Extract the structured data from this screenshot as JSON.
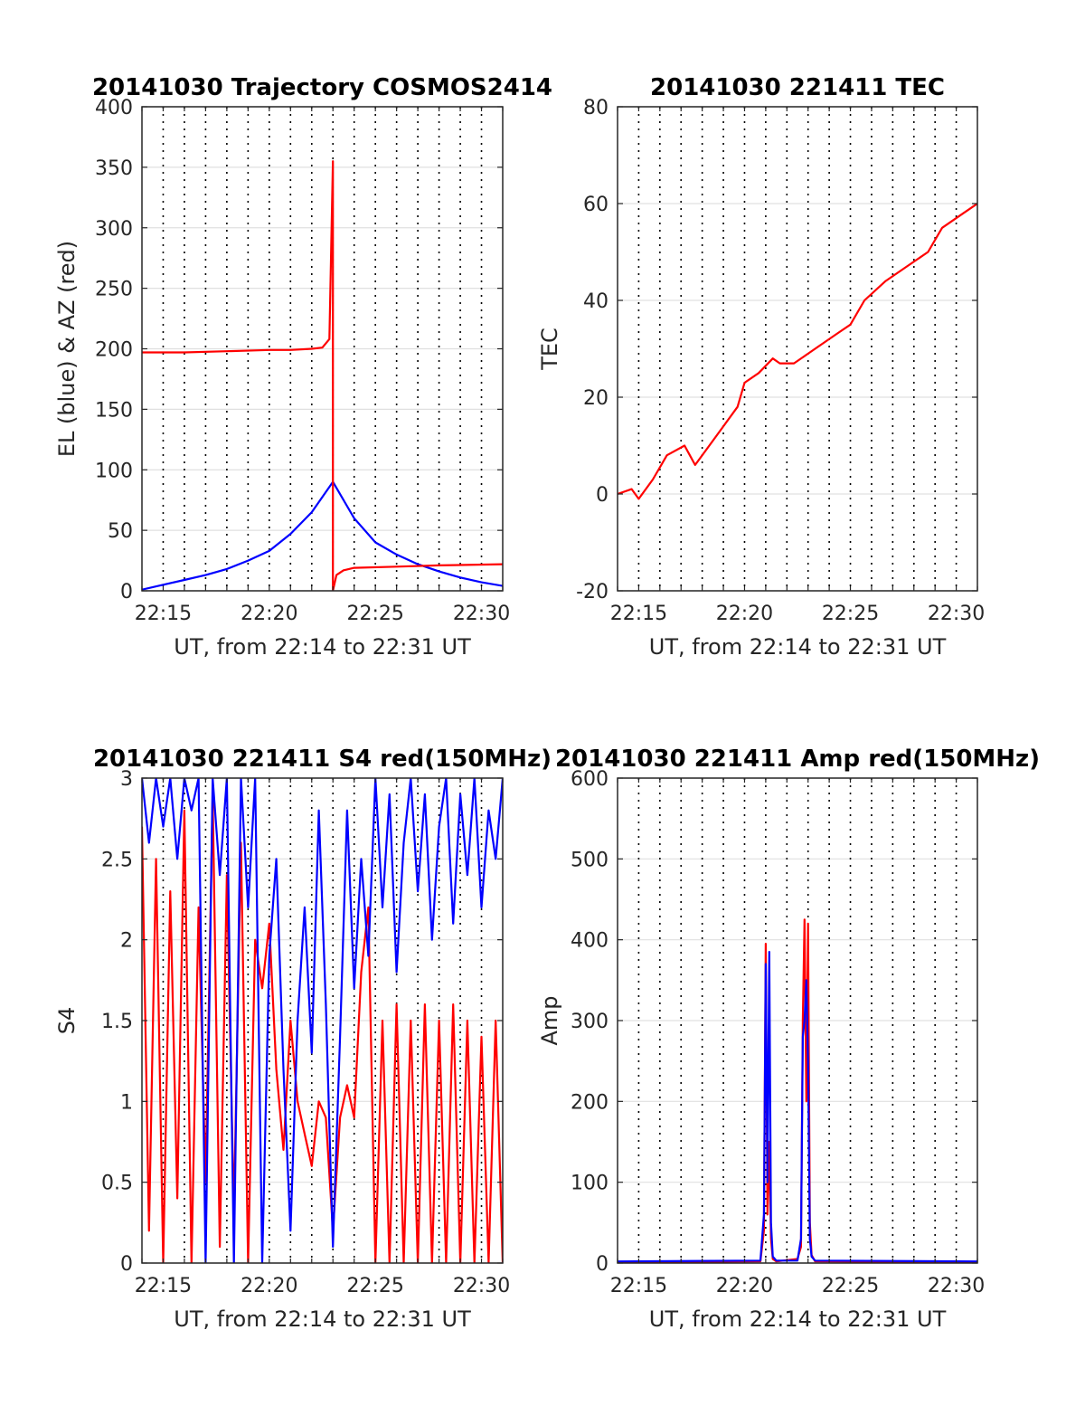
{
  "chart_data": [
    {
      "type": "line",
      "title": "20141030 Trajectory COSMOS2414",
      "xlabel": "UT, from 22:14 to 22:31 UT",
      "ylabel": "EL (blue) & AZ (red)",
      "xlim": [
        "22:14",
        "22:31"
      ],
      "ylim": [
        0,
        400
      ],
      "x_ticks": [
        "22:15",
        "22:20",
        "22:25",
        "22:30"
      ],
      "y_ticks": [
        "0",
        "50",
        "100",
        "150",
        "200",
        "250",
        "300",
        "350",
        "400"
      ],
      "grid": true,
      "series": [
        {
          "color": "#0000ff",
          "x": [
            "22:14:00",
            "22:15:00",
            "22:16:00",
            "22:17:00",
            "22:18:00",
            "22:19:00",
            "22:20:00",
            "22:21:00",
            "22:22:00",
            "22:23:00",
            "22:24:00",
            "22:25:00",
            "22:26:00",
            "22:27:00",
            "22:28:00",
            "22:29:00",
            "22:30:00",
            "22:31:00"
          ],
          "y": [
            1,
            5,
            9,
            13,
            18,
            25,
            33,
            47,
            65,
            90,
            60,
            40,
            30,
            22,
            16,
            11,
            7,
            4
          ]
        },
        {
          "color": "#ff0000",
          "x": [
            "22:14:00",
            "22:16:00",
            "22:18:00",
            "22:20:00",
            "22:21:00",
            "22:22:00",
            "22:22:30",
            "22:22:50",
            "22:23:00",
            "22:23:00",
            "22:23:10",
            "22:23:30",
            "22:24:00",
            "22:26:00",
            "22:28:00",
            "22:31:00"
          ],
          "y": [
            197,
            197,
            198,
            199,
            199,
            200,
            201,
            208,
            355,
            0,
            13,
            17,
            19,
            20,
            21,
            22
          ]
        }
      ]
    },
    {
      "type": "line",
      "title": "20141030 221411 TEC",
      "xlabel": "UT, from 22:14 to 22:31 UT",
      "ylabel": "TEC",
      "xlim": [
        "22:14",
        "22:31"
      ],
      "ylim": [
        -20,
        80
      ],
      "x_ticks": [
        "22:15",
        "22:20",
        "22:25",
        "22:30"
      ],
      "y_ticks": [
        "-20",
        "0",
        "20",
        "40",
        "60",
        "80"
      ],
      "grid": true,
      "series": [
        {
          "color": "#ff0000",
          "x": [
            "22:14:00",
            "22:14:40",
            "22:15:00",
            "22:15:40",
            "22:16:20",
            "22:17:10",
            "22:17:40",
            "22:18:20",
            "22:19:00",
            "22:19:40",
            "22:20:00",
            "22:20:40",
            "22:21:20",
            "22:21:40",
            "22:22:20",
            "22:23:00",
            "22:23:40",
            "22:24:20",
            "22:25:00",
            "22:25:40",
            "22:26:40",
            "22:27:40",
            "22:28:40",
            "22:29:20",
            "22:30:20",
            "22:31:00"
          ],
          "y": [
            0,
            1,
            -1,
            3,
            8,
            10,
            6,
            10,
            14,
            18,
            23,
            25,
            28,
            27,
            27,
            29,
            31,
            33,
            35,
            40,
            44,
            47,
            50,
            55,
            58,
            60
          ]
        }
      ]
    },
    {
      "type": "line",
      "title": "20141030 221411 S4 red(150MHz)",
      "xlabel": "UT, from 22:14 to 22:31 UT",
      "ylabel": "S4",
      "xlim": [
        "22:14",
        "22:31"
      ],
      "ylim": [
        0,
        3
      ],
      "x_ticks": [
        "22:15",
        "22:20",
        "22:25",
        "22:30"
      ],
      "y_ticks": [
        "0",
        "0.5",
        "1",
        "1.5",
        "2",
        "2.5",
        "3"
      ],
      "grid": true,
      "series": [
        {
          "color": "#ff0000",
          "x": [
            "22:14:00",
            "22:14:20",
            "22:14:40",
            "22:15:00",
            "22:15:20",
            "22:15:40",
            "22:16:00",
            "22:16:20",
            "22:16:40",
            "22:17:00",
            "22:17:20",
            "22:17:40",
            "22:18:00",
            "22:18:20",
            "22:18:40",
            "22:19:00",
            "22:19:20",
            "22:19:40",
            "22:20:00",
            "22:20:20",
            "22:20:40",
            "22:21:00",
            "22:21:20",
            "22:21:40",
            "22:22:00",
            "22:22:20",
            "22:22:40",
            "22:23:00",
            "22:23:20",
            "22:23:40",
            "22:24:00",
            "22:24:20",
            "22:24:40",
            "22:25:00",
            "22:25:20",
            "22:25:40",
            "22:26:00",
            "22:26:20",
            "22:26:40",
            "22:27:00",
            "22:27:20",
            "22:27:40",
            "22:28:00",
            "22:28:20",
            "22:28:40",
            "22:29:00",
            "22:29:20",
            "22:29:40",
            "22:30:00",
            "22:30:20",
            "22:30:40",
            "22:31:00"
          ],
          "y": [
            2.7,
            0.2,
            2.5,
            0.0,
            2.3,
            0.4,
            2.8,
            0.0,
            2.2,
            0.5,
            2.9,
            0.1,
            2.4,
            0.3,
            2.6,
            0.0,
            2.0,
            1.7,
            2.1,
            1.2,
            0.7,
            1.5,
            1.0,
            0.8,
            0.6,
            1.0,
            0.9,
            0.2,
            0.9,
            1.1,
            0.9,
            1.8,
            2.2,
            0.0,
            1.5,
            0.0,
            1.6,
            0.0,
            1.5,
            0.0,
            1.6,
            0.0,
            1.5,
            0.0,
            1.6,
            0.0,
            1.5,
            0.0,
            1.4,
            0.0,
            1.5,
            0.0
          ]
        },
        {
          "color": "#0000ff",
          "x": [
            "22:14:00",
            "22:14:20",
            "22:14:40",
            "22:15:00",
            "22:15:20",
            "22:15:40",
            "22:16:00",
            "22:16:20",
            "22:16:40",
            "22:17:00",
            "22:17:20",
            "22:17:40",
            "22:18:00",
            "22:18:20",
            "22:18:40",
            "22:19:00",
            "22:19:20",
            "22:19:40",
            "22:20:00",
            "22:20:20",
            "22:20:40",
            "22:21:00",
            "22:21:20",
            "22:21:40",
            "22:22:00",
            "22:22:20",
            "22:22:40",
            "22:23:00",
            "22:23:20",
            "22:23:40",
            "22:24:00",
            "22:24:20",
            "22:24:40",
            "22:25:00",
            "22:25:20",
            "22:25:40",
            "22:26:00",
            "22:26:20",
            "22:26:40",
            "22:27:00",
            "22:27:20",
            "22:27:40",
            "22:28:00",
            "22:28:20",
            "22:28:40",
            "22:29:00",
            "22:29:20",
            "22:29:40",
            "22:30:00",
            "22:30:20",
            "22:30:40",
            "22:31:00"
          ],
          "y": [
            3.0,
            2.6,
            3.0,
            2.7,
            3.0,
            2.5,
            3.0,
            2.8,
            3.0,
            0.0,
            3.0,
            2.4,
            3.0,
            0.0,
            3.0,
            2.2,
            3.0,
            0.0,
            1.9,
            2.5,
            1.2,
            0.2,
            1.5,
            2.2,
            1.3,
            2.8,
            1.6,
            0.1,
            1.4,
            2.8,
            1.7,
            2.5,
            1.9,
            3.0,
            2.2,
            2.9,
            1.8,
            2.6,
            3.0,
            2.3,
            2.9,
            2.0,
            2.7,
            3.0,
            2.1,
            2.9,
            2.4,
            3.0,
            2.2,
            2.8,
            2.5,
            3.0
          ]
        }
      ]
    },
    {
      "type": "line",
      "title": "20141030 221411 Amp red(150MHz)",
      "xlabel": "UT, from 22:14 to 22:31 UT",
      "ylabel": "Amp",
      "xlim": [
        "22:14",
        "22:31"
      ],
      "ylim": [
        0,
        600
      ],
      "x_ticks": [
        "22:15",
        "22:20",
        "22:25",
        "22:30"
      ],
      "y_ticks": [
        "0",
        "100",
        "200",
        "300",
        "400",
        "500",
        "600"
      ],
      "grid": true,
      "series": [
        {
          "color": "#ff0000",
          "x": [
            "22:14:00",
            "22:20:45",
            "22:20:55",
            "22:21:00",
            "22:21:05",
            "22:21:10",
            "22:21:15",
            "22:21:20",
            "22:21:30",
            "22:22:30",
            "22:22:40",
            "22:22:45",
            "22:22:50",
            "22:22:55",
            "22:23:00",
            "22:23:05",
            "22:23:10",
            "22:23:20",
            "22:31:00"
          ],
          "y": [
            1,
            2,
            40,
            395,
            60,
            150,
            30,
            5,
            2,
            5,
            20,
            300,
            425,
            200,
            420,
            50,
            10,
            2,
            1
          ]
        },
        {
          "color": "#0000ff",
          "x": [
            "22:14:00",
            "22:20:45",
            "22:20:55",
            "22:21:00",
            "22:21:05",
            "22:21:10",
            "22:21:15",
            "22:21:20",
            "22:21:30",
            "22:22:30",
            "22:22:40",
            "22:22:45",
            "22:22:50",
            "22:22:55",
            "22:23:00",
            "22:23:05",
            "22:23:10",
            "22:23:20",
            "22:31:00"
          ],
          "y": [
            2,
            3,
            60,
            370,
            100,
            385,
            50,
            8,
            3,
            3,
            30,
            280,
            300,
            350,
            250,
            30,
            8,
            3,
            2
          ]
        }
      ]
    }
  ]
}
